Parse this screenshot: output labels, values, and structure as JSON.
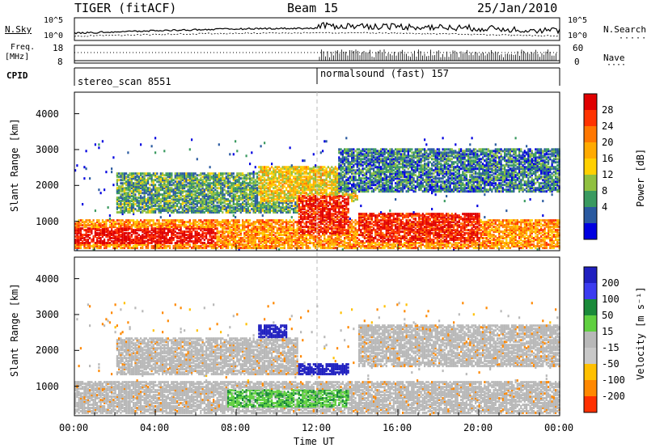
{
  "header": {
    "station": "TIGER (fitACF)",
    "beam": "Beam 15",
    "date": "25/Jan/2010"
  },
  "left_labels": {
    "nsky": "N.Sky",
    "freq": "Freq.",
    "freq_unit": "[MHz]",
    "cpid": "CPID"
  },
  "right_labels": {
    "nsearch": "N.Search",
    "nave": "Nave"
  },
  "noise_axis_left": [
    "10^5",
    "10^0"
  ],
  "noise_axis_right": [
    "10^5",
    "10^0"
  ],
  "freq_axis": [
    "18",
    "8"
  ],
  "nave_axis": [
    "60",
    "0"
  ],
  "cpid_segments": [
    {
      "label": "stereo_scan 8551",
      "start_hour": 0
    },
    {
      "label": "normalsound (fast) 157",
      "start_hour": 12
    }
  ],
  "chart_data": [
    {
      "type": "heatmap",
      "quantity": "Power",
      "colorbar_label": "Power [dB]",
      "colorbar_ticks": [
        "28",
        "24",
        "20",
        "16",
        "12",
        "8",
        "4"
      ],
      "colorbar_colors": [
        "#e00000",
        "#ff3300",
        "#ff7700",
        "#ffaa00",
        "#ffd000",
        "#90c040",
        "#3a9a60",
        "#2a5aa0",
        "#0000e0"
      ],
      "ylabel": "Slant Range [km]",
      "yticks": [
        "4000",
        "3000",
        "2000",
        "1000"
      ],
      "ylim": [
        180,
        4600
      ],
      "xlim": [
        0,
        24
      ],
      "regions": [
        {
          "x0": 0,
          "x1": 24,
          "y0": 200,
          "y1": 1000,
          "value": 20
        },
        {
          "x0": 0,
          "x1": 7,
          "y0": 350,
          "y1": 800,
          "value": 28
        },
        {
          "x0": 2,
          "x1": 11,
          "y0": 1200,
          "y1": 2300,
          "value": 10
        },
        {
          "x0": 9,
          "x1": 14,
          "y0": 1500,
          "y1": 2500,
          "value": 16
        },
        {
          "x0": 11,
          "x1": 13.5,
          "y0": 600,
          "y1": 1700,
          "value": 26
        },
        {
          "x0": 14,
          "x1": 20,
          "y0": 400,
          "y1": 1200,
          "value": 26
        },
        {
          "x0": 13,
          "x1": 24,
          "y0": 1800,
          "y1": 3000,
          "value": 8
        }
      ]
    },
    {
      "type": "heatmap",
      "quantity": "Velocity",
      "colorbar_label": "Velocity [m s⁻¹]",
      "colorbar_ticks": [
        "200",
        "100",
        "50",
        "15",
        "-15",
        "-50",
        "-100",
        "-200"
      ],
      "colorbar_colors": [
        "#2020c0",
        "#3c3cf0",
        "#1a8a3a",
        "#60d040",
        "#b8b8b8",
        "#c8c8c8",
        "#ffc000",
        "#ff8800",
        "#ff3000"
      ],
      "ylabel": "Slant Range [km]",
      "yticks": [
        "4000",
        "3000",
        "2000",
        "1000"
      ],
      "ylim": [
        180,
        4600
      ],
      "xlim": [
        0,
        24
      ],
      "xlabel": "Time UT",
      "xticks": [
        "00:00",
        "04:00",
        "08:00",
        "12:00",
        "16:00",
        "20:00",
        "00:00"
      ],
      "regions": [
        {
          "x0": 0,
          "x1": 24,
          "y0": 200,
          "y1": 1100,
          "value": 0
        },
        {
          "x0": 2,
          "x1": 11,
          "y0": 1300,
          "y1": 2300,
          "value": 0
        },
        {
          "x0": 7.5,
          "x1": 13.5,
          "y0": 400,
          "y1": 900,
          "value": 40
        },
        {
          "x0": 11,
          "x1": 13.5,
          "y0": 1300,
          "y1": 1600,
          "value": 220
        },
        {
          "x0": 9,
          "x1": 10.5,
          "y0": 2300,
          "y1": 2700,
          "value": 200
        },
        {
          "x0": 14,
          "x1": 24,
          "y0": 1500,
          "y1": 2700,
          "value": 0
        }
      ]
    }
  ]
}
